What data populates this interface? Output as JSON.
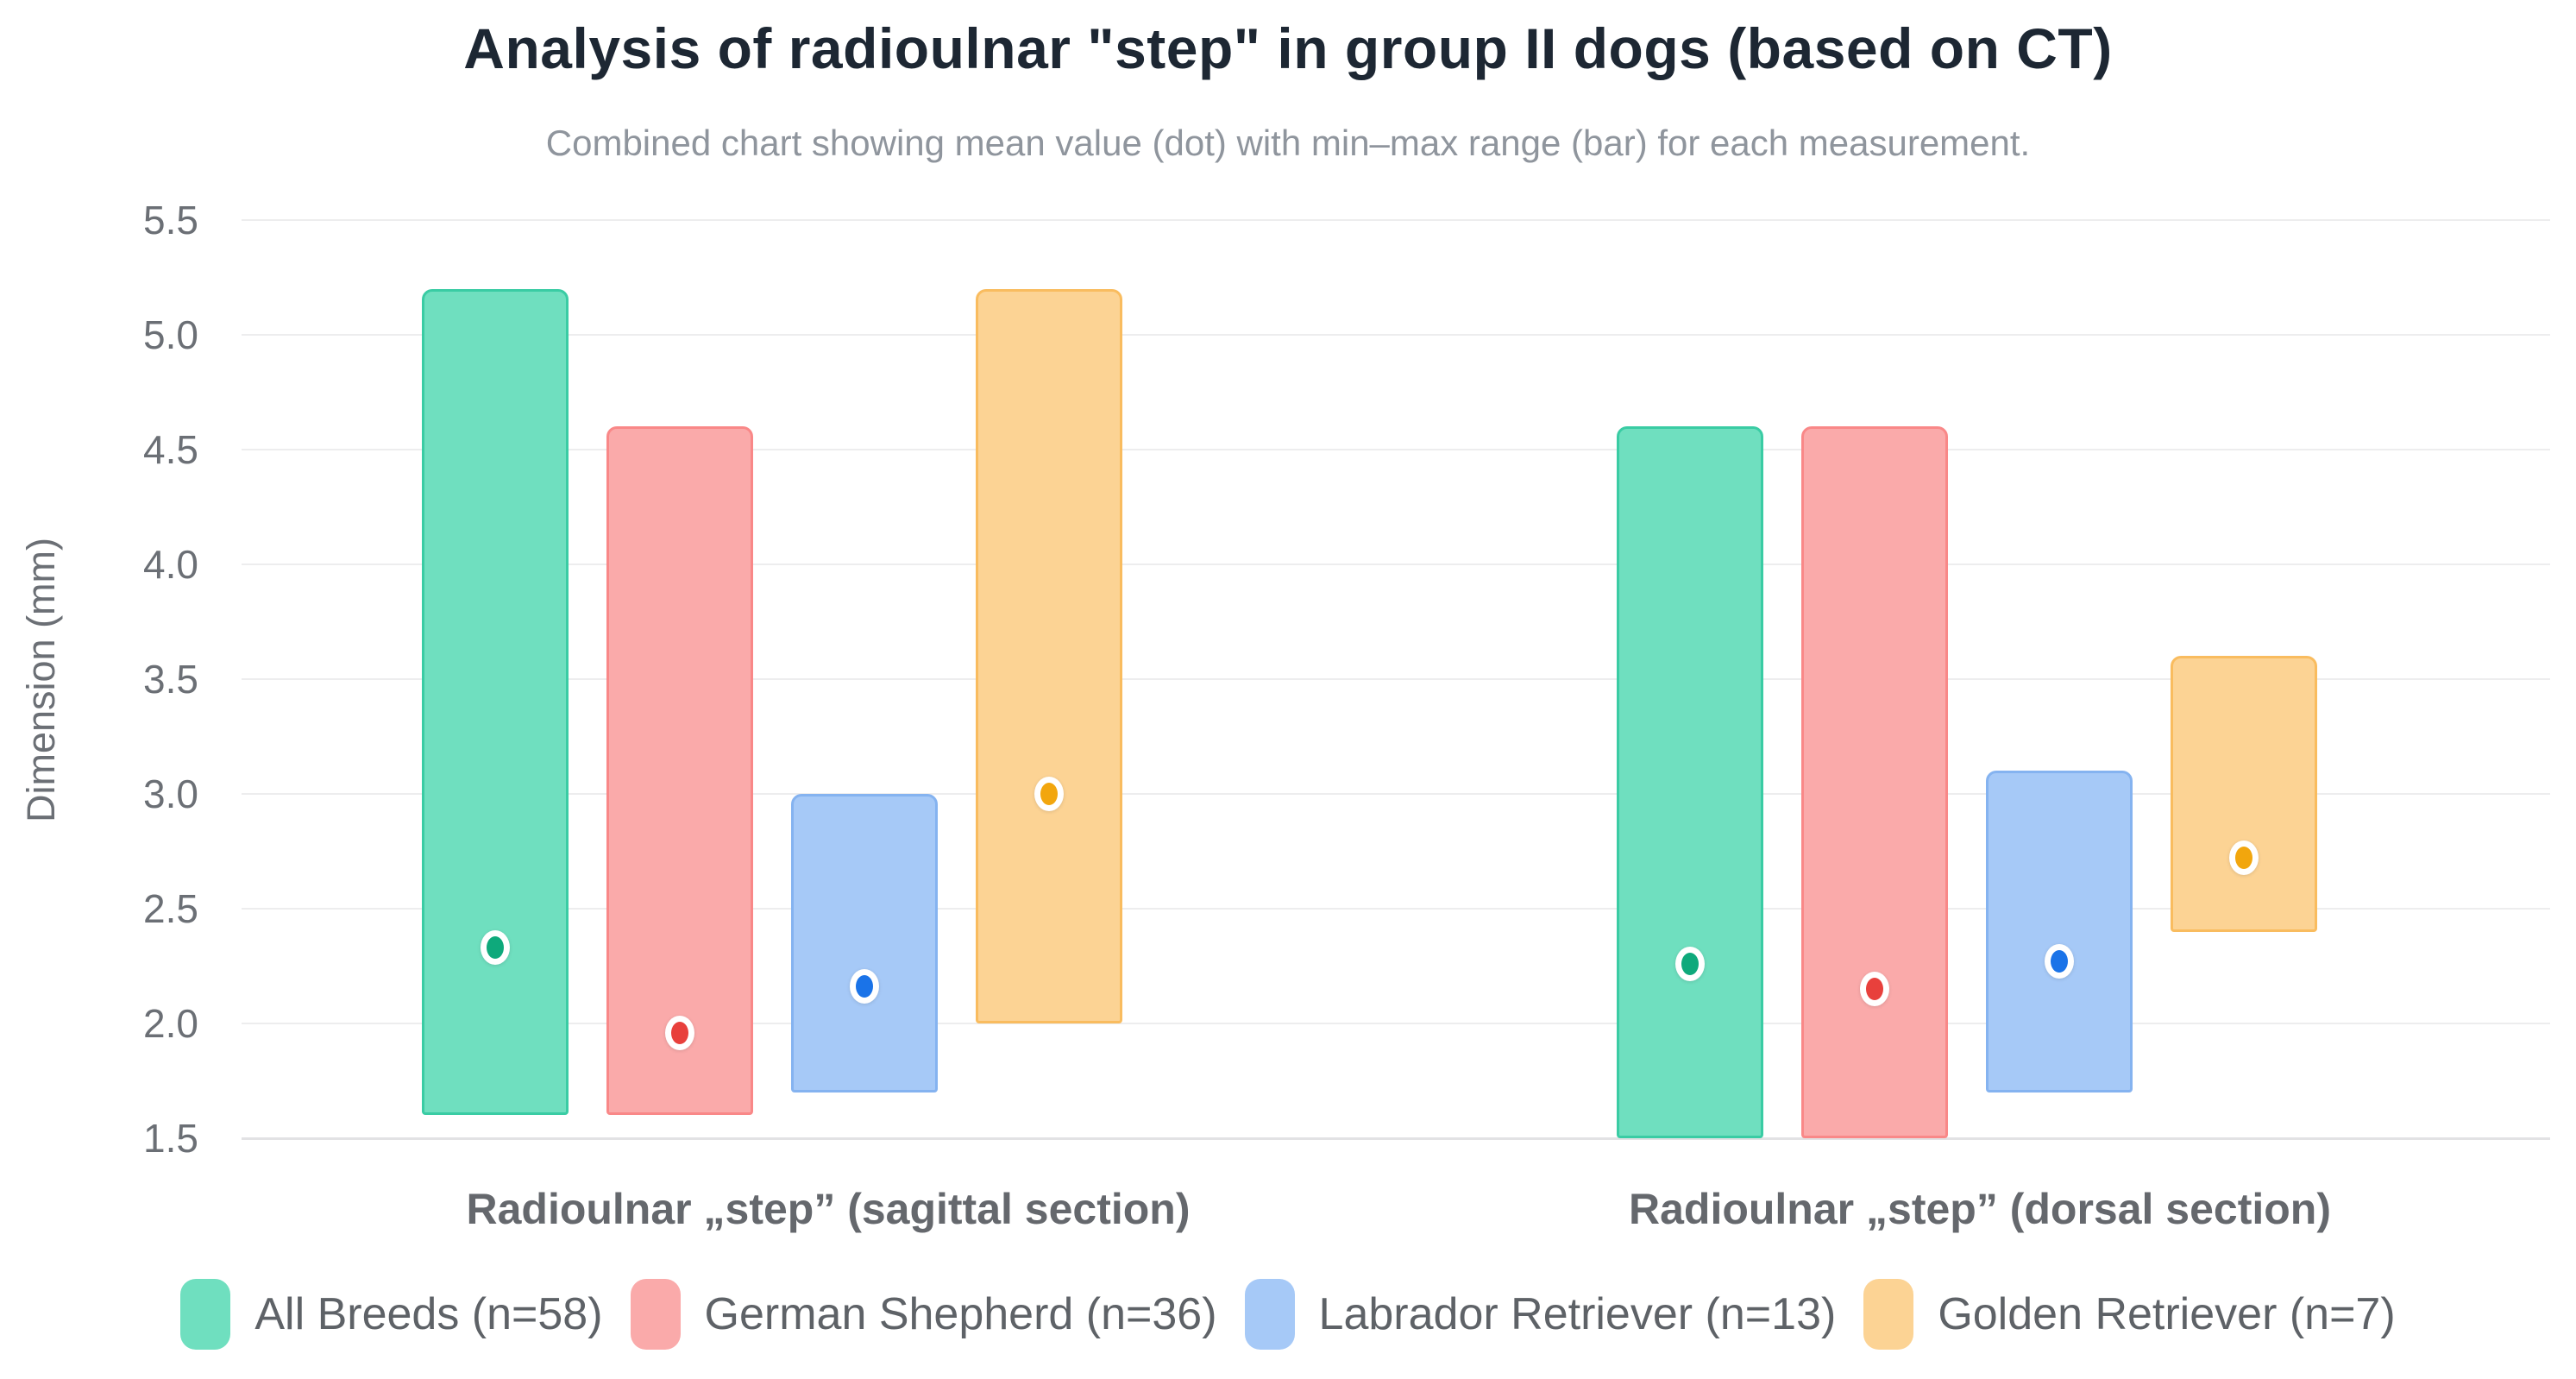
{
  "title": "Analysis of radioulnar \"step\" in group II dogs (based on CT)",
  "subtitle": "Combined chart showing mean value (dot) with min–max range (bar) for each measurement.",
  "y_axis_label": "Dimension (mm)",
  "chart_data": {
    "type": "bar",
    "subtype": "range-bar-with-mean-dot",
    "title": "Analysis of radioulnar \"step\" in group II dogs (based on CT)",
    "subtitle": "Combined chart showing mean value (dot) with min–max range (bar) for each measurement.",
    "xlabel": "",
    "ylabel": "Dimension (mm)",
    "ylim": [
      1.5,
      5.5
    ],
    "yticks": [
      5.5,
      5.0,
      4.5,
      4.0,
      3.5,
      3.0,
      2.5,
      2.0,
      1.5
    ],
    "grid": true,
    "legend_position": "bottom",
    "categories": [
      "Radioulnar „step” (sagittal section)",
      "Radioulnar „step” (dorsal section)"
    ],
    "series": [
      {
        "name": "All Breeds (n=58)",
        "fill_color": "#6FDFBF",
        "border_color": "#3ACCA4",
        "dot_color": "#0EA97B",
        "data": [
          {
            "category": "Radioulnar „step” (sagittal section)",
            "min": 1.6,
            "max": 5.2,
            "mean": 2.33
          },
          {
            "category": "Radioulnar „step” (dorsal section)",
            "min": 1.5,
            "max": 4.6,
            "mean": 2.26
          }
        ]
      },
      {
        "name": "German Shepherd (n=36)",
        "fill_color": "#FAAAAA",
        "border_color": "#F98888",
        "dot_color": "#E8403C",
        "data": [
          {
            "category": "Radioulnar „step” (sagittal section)",
            "min": 1.6,
            "max": 4.6,
            "mean": 1.96
          },
          {
            "category": "Radioulnar „step” (dorsal section)",
            "min": 1.5,
            "max": 4.6,
            "mean": 2.15
          }
        ]
      },
      {
        "name": "Labrador Retriever (n=13)",
        "fill_color": "#A6C9F7",
        "border_color": "#85B3F0",
        "dot_color": "#1A73E8",
        "data": [
          {
            "category": "Radioulnar „step” (sagittal section)",
            "min": 1.7,
            "max": 3.0,
            "mean": 2.16
          },
          {
            "category": "Radioulnar „step” (dorsal section)",
            "min": 1.7,
            "max": 3.1,
            "mean": 2.27
          }
        ]
      },
      {
        "name": "Golden Retriever (n=7)",
        "fill_color": "#FCD394",
        "border_color": "#F9BC5F",
        "dot_color": "#F2A60D",
        "data": [
          {
            "category": "Radioulnar „step” (sagittal section)",
            "min": 2.0,
            "max": 5.2,
            "mean": 3.0
          },
          {
            "category": "Radioulnar „step” (dorsal section)",
            "min": 2.4,
            "max": 3.6,
            "mean": 2.72
          }
        ]
      }
    ]
  }
}
